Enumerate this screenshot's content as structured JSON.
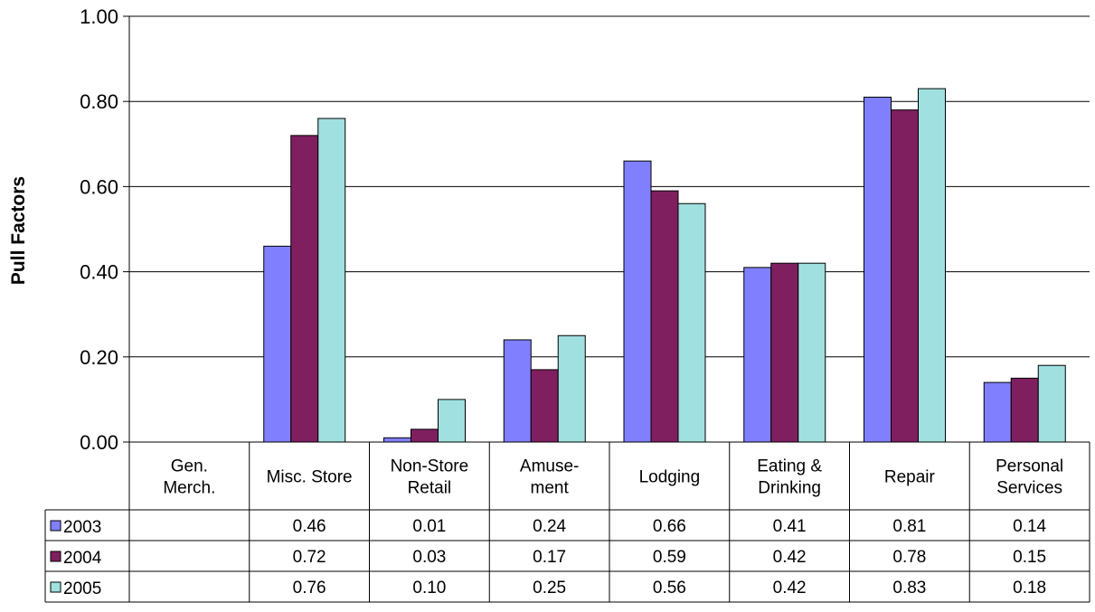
{
  "chart_data": {
    "type": "bar",
    "title": "",
    "xlabel": "",
    "ylabel": "Pull Factors",
    "ylim": [
      0,
      1.0
    ],
    "yticks": [
      "0.00",
      "0.20",
      "0.40",
      "0.60",
      "0.80",
      "1.00"
    ],
    "grid": true,
    "legend": "data-table-left",
    "categories": [
      [
        "Gen.",
        "Merch."
      ],
      [
        "Misc. Store"
      ],
      [
        "Non-Store",
        "Retail"
      ],
      [
        "Amuse-",
        "ment"
      ],
      [
        "Lodging"
      ],
      [
        "Eating &",
        "Drinking"
      ],
      [
        "Repair"
      ],
      [
        "Personal",
        "Services"
      ]
    ],
    "series": [
      {
        "name": "2003",
        "color": "#8080FF",
        "values": [
          null,
          0.46,
          0.01,
          0.24,
          0.66,
          0.41,
          0.81,
          0.14
        ],
        "labels": [
          "",
          "0.46",
          "0.01",
          "0.24",
          "0.66",
          "0.41",
          "0.81",
          "0.14"
        ]
      },
      {
        "name": "2004",
        "color": "#7F1F5F",
        "values": [
          null,
          0.72,
          0.03,
          0.17,
          0.59,
          0.42,
          0.78,
          0.15
        ],
        "labels": [
          "",
          "0.72",
          "0.03",
          "0.17",
          "0.59",
          "0.42",
          "0.78",
          "0.15"
        ]
      },
      {
        "name": "2005",
        "color": "#A0E0E0",
        "values": [
          null,
          0.76,
          0.1,
          0.25,
          0.56,
          0.42,
          0.83,
          0.18
        ],
        "labels": [
          "",
          "0.76",
          "0.10",
          "0.25",
          "0.56",
          "0.42",
          "0.83",
          "0.18"
        ]
      }
    ]
  }
}
